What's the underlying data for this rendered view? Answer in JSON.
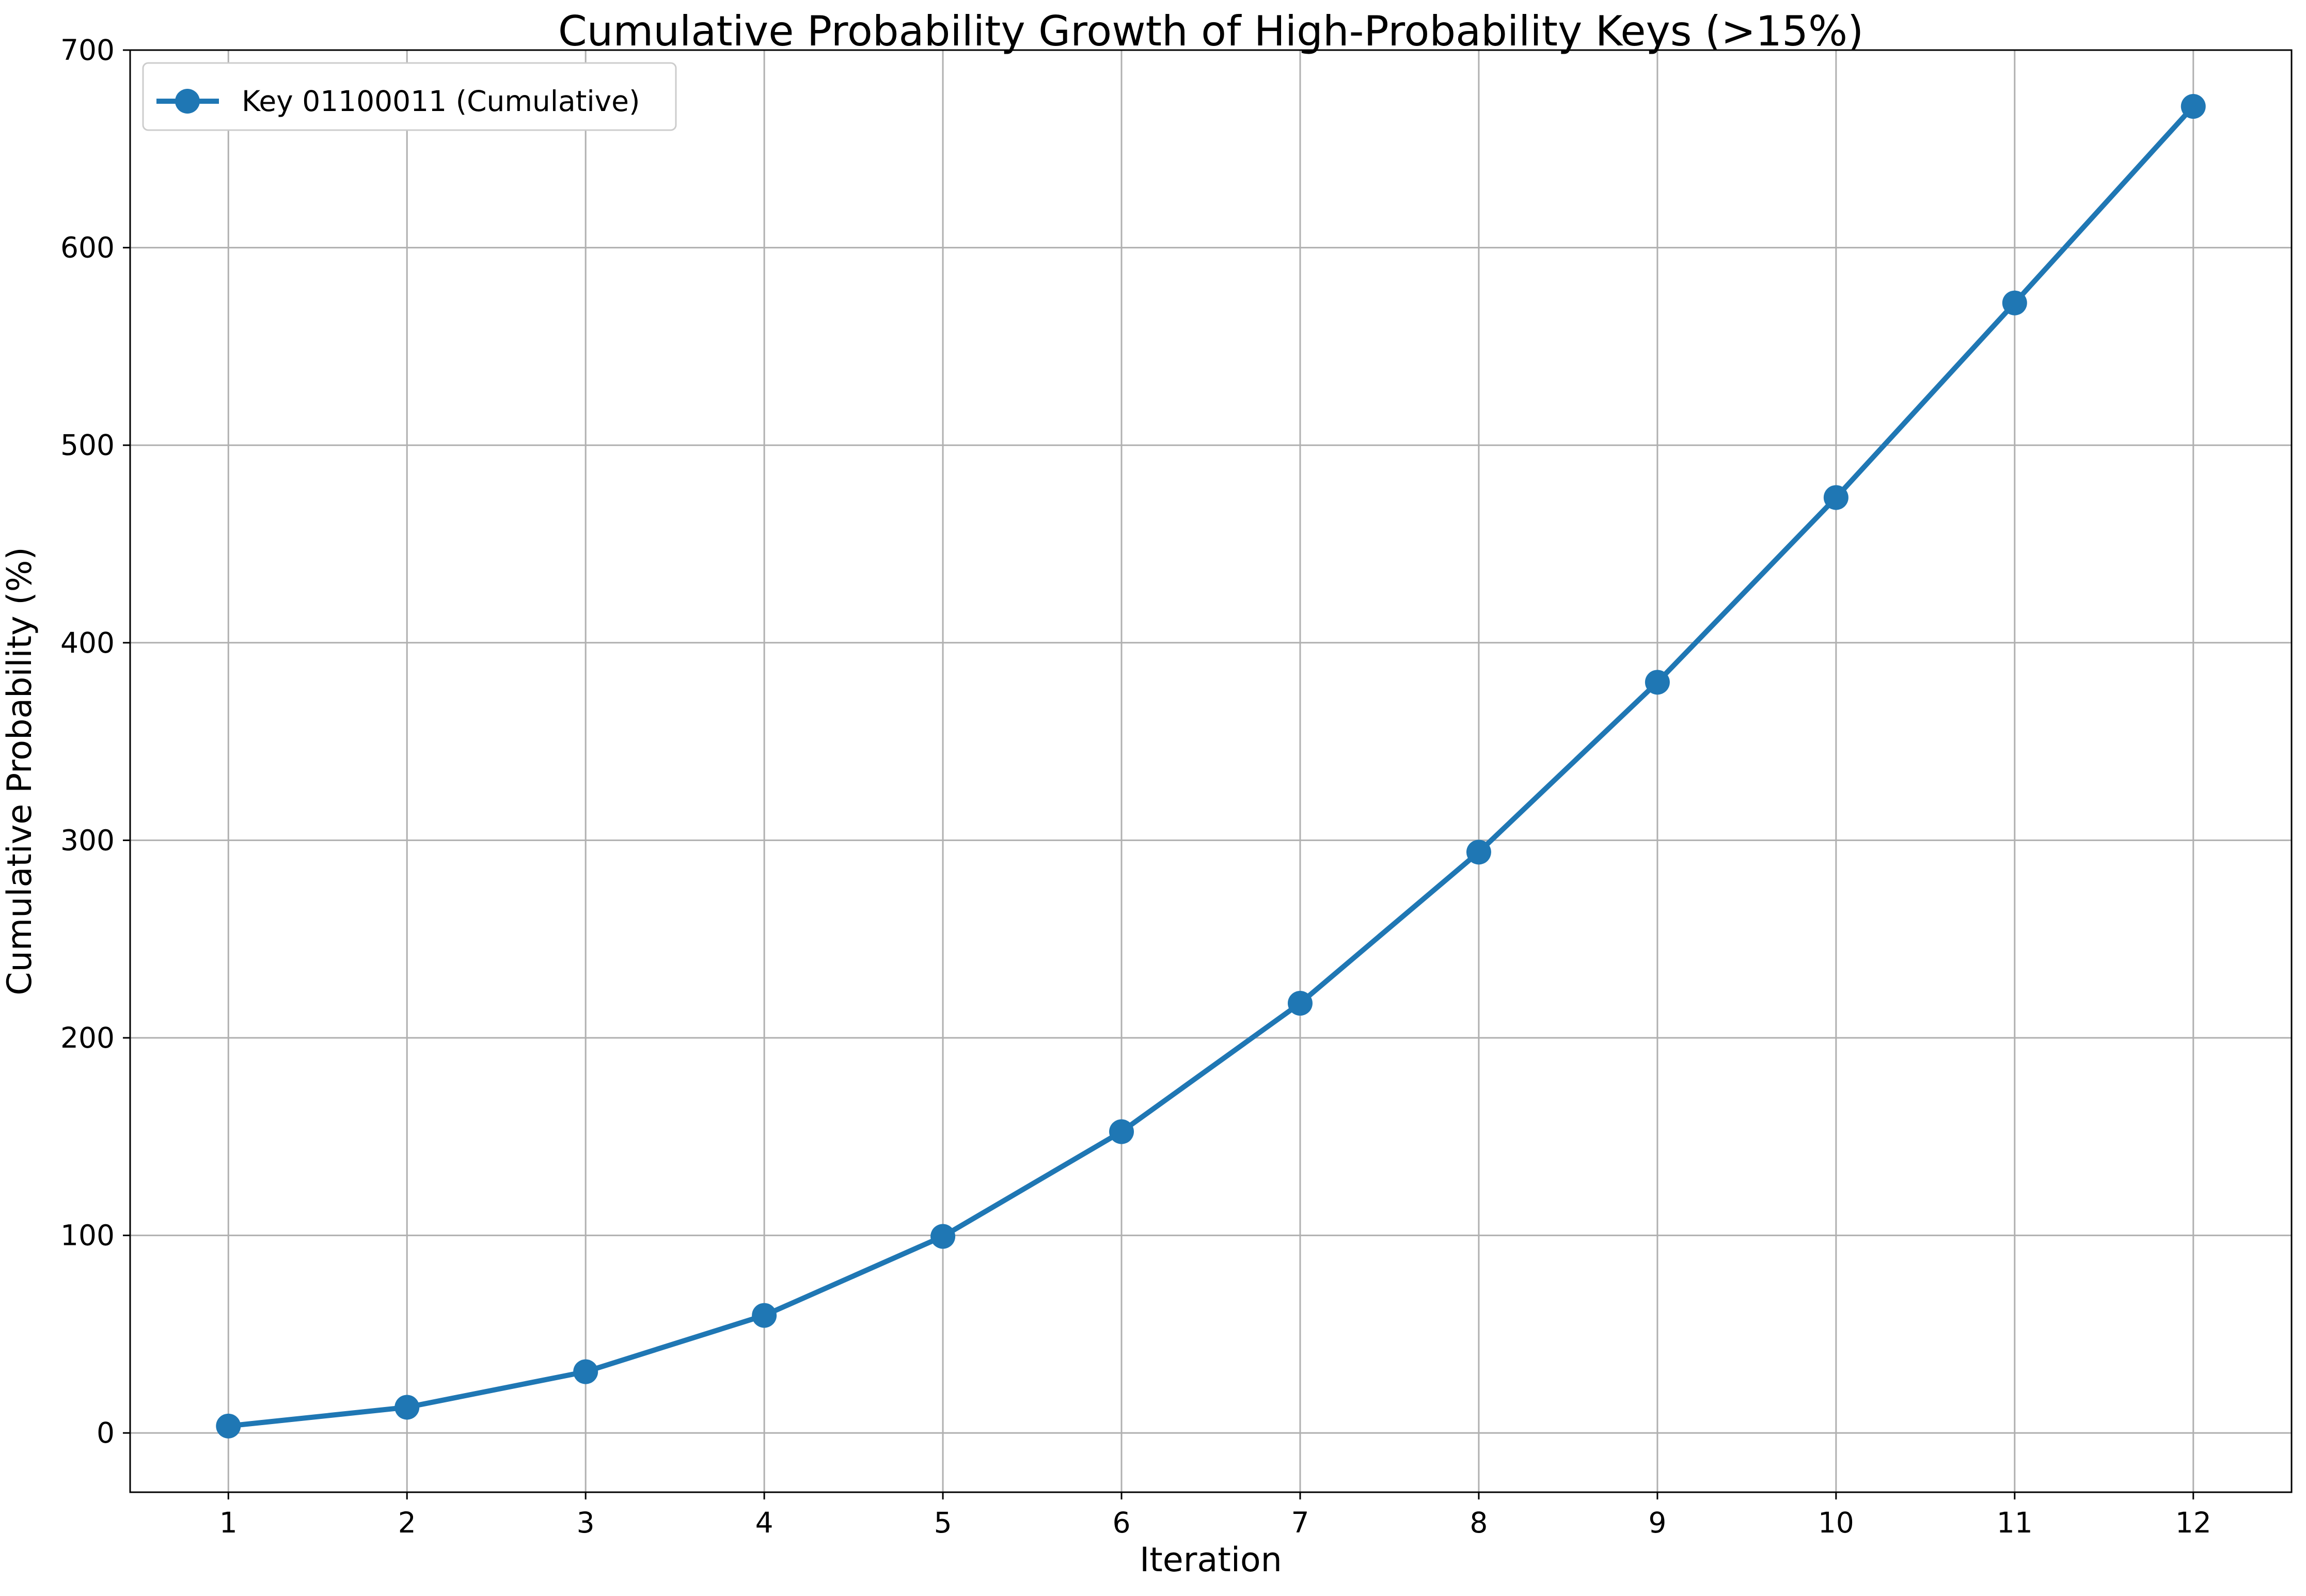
{
  "chart_data": {
    "type": "line",
    "title": "Cumulative Probability Growth of High-Probability Keys (>15%)",
    "xlabel": "Iteration",
    "ylabel": "Cumulative Probability (%)",
    "x": [
      1,
      2,
      3,
      4,
      5,
      6,
      7,
      8,
      9,
      10,
      11,
      12
    ],
    "xlim": [
      0.45,
      12.55
    ],
    "ylim": [
      -30,
      700
    ],
    "xticks": [
      1,
      2,
      3,
      4,
      5,
      6,
      7,
      8,
      9,
      10,
      11,
      12
    ],
    "yticks": [
      0,
      100,
      200,
      300,
      400,
      500,
      600,
      700
    ],
    "grid": true,
    "legend_position": "upper-left",
    "series": [
      {
        "name": "Key 01100011 (Cumulative)",
        "color": "#1f77b4",
        "marker": "circle",
        "values": [
          3.5,
          13,
          31,
          59.5,
          99.5,
          152.5,
          217.5,
          294,
          380,
          473.5,
          572,
          671.5
        ]
      }
    ]
  }
}
